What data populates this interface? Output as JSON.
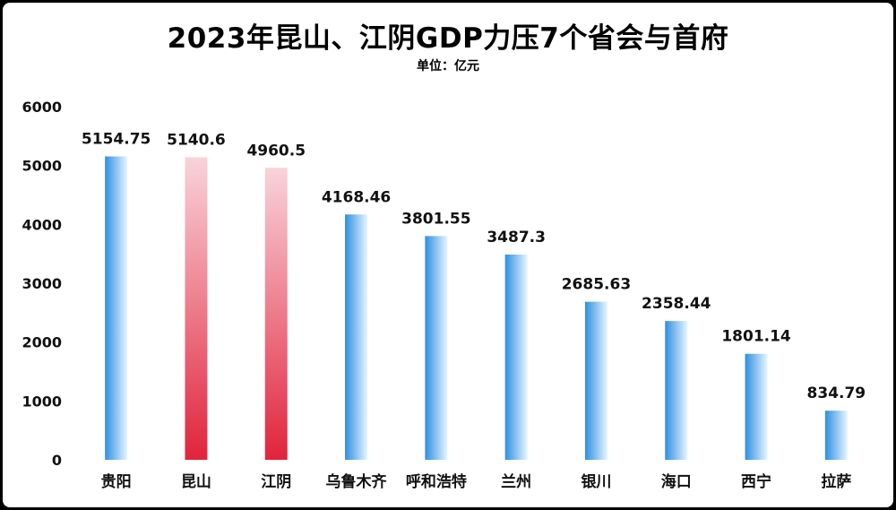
{
  "chart_data": {
    "type": "bar",
    "title": "2023年昆山、江阴GDP力压7个省会与首府",
    "subtitle": "单位：亿元",
    "categories": [
      "贵阳",
      "昆山",
      "江阴",
      "乌鲁木齐",
      "呼和浩特",
      "兰州",
      "银川",
      "海口",
      "西宁",
      "拉萨"
    ],
    "values": [
      5154.75,
      5140.6,
      4960.5,
      4168.46,
      3801.55,
      3487.3,
      2685.63,
      2358.44,
      1801.14,
      834.79
    ],
    "value_labels": [
      "5154.75",
      "5140.6",
      "4960.5",
      "4168.46",
      "3801.55",
      "3487.3",
      "2685.63",
      "2358.44",
      "1801.14",
      "834.79"
    ],
    "highlight": [
      false,
      true,
      true,
      false,
      false,
      false,
      false,
      false,
      false,
      false
    ],
    "ylim": [
      0,
      6000
    ],
    "yticks": [
      0,
      1000,
      2000,
      3000,
      4000,
      5000,
      6000
    ],
    "grid": false,
    "xlabel": "",
    "ylabel": "",
    "colors": {
      "blue_dark": "#2f8fe0",
      "blue_light": "#e6f6ff",
      "red_dark": "#e0243c",
      "red_light": "#f9d3da"
    }
  }
}
